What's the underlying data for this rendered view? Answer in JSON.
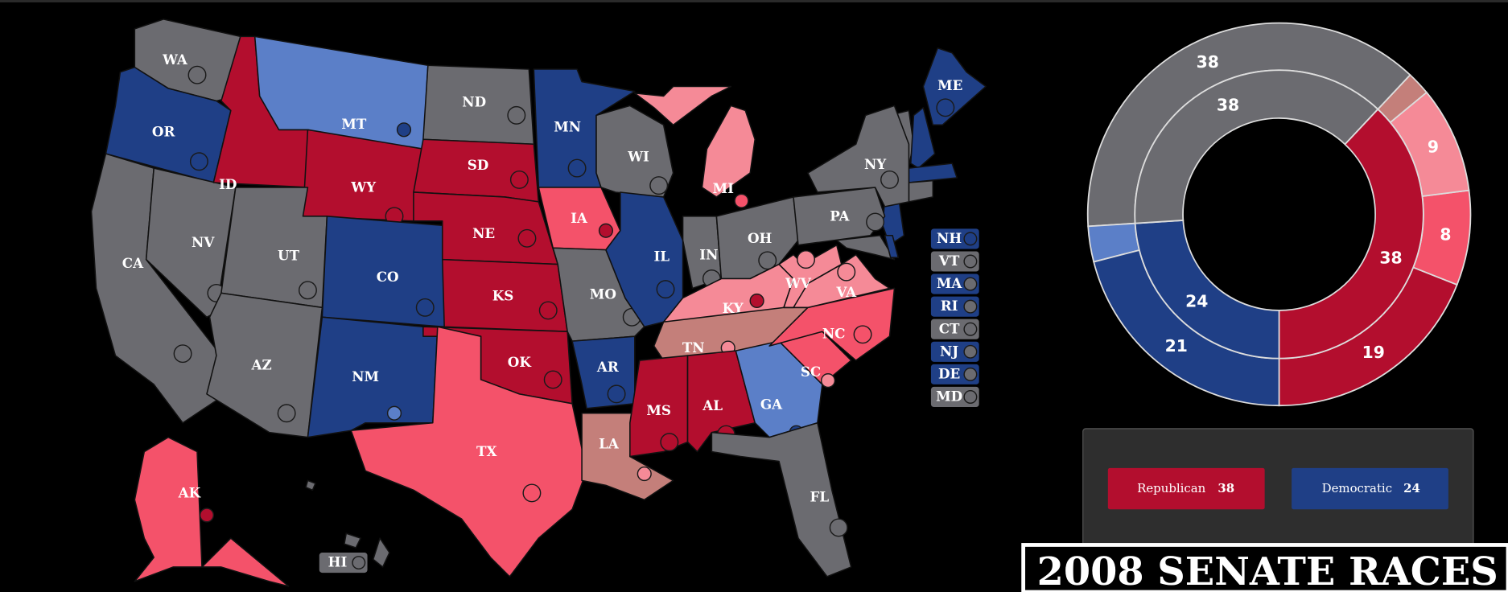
{
  "colors": {
    "safe_r": "#b30e2e",
    "likely_r": "#f4526a",
    "lean_r": "#f58a97",
    "tossup": "#c47f7a",
    "safe_d": "#1f3f86",
    "likely_d": "#5b7fc8",
    "none": "#6b6b70"
  },
  "states": [
    {
      "abbr": "WA",
      "rating": "none",
      "marker": "none"
    },
    {
      "abbr": "OR",
      "rating": "safe_d",
      "marker": "safe_d"
    },
    {
      "abbr": "CA",
      "rating": "none",
      "marker": "none"
    },
    {
      "abbr": "NV",
      "rating": "none",
      "marker": "none"
    },
    {
      "abbr": "ID",
      "rating": "safe_r",
      "marker": "safe_r"
    },
    {
      "abbr": "MT",
      "rating": "likely_d",
      "marker": "safe_d"
    },
    {
      "abbr": "WY",
      "rating": "safe_r",
      "marker": "safe_r"
    },
    {
      "abbr": "UT",
      "rating": "none",
      "marker": "none"
    },
    {
      "abbr": "CO",
      "rating": "safe_d",
      "marker": "safe_d"
    },
    {
      "abbr": "AZ",
      "rating": "none",
      "marker": "none"
    },
    {
      "abbr": "NM",
      "rating": "safe_d",
      "marker": "likely_d"
    },
    {
      "abbr": "ND",
      "rating": "none",
      "marker": "none"
    },
    {
      "abbr": "SD",
      "rating": "safe_r",
      "marker": "safe_r"
    },
    {
      "abbr": "NE",
      "rating": "safe_r",
      "marker": "safe_r"
    },
    {
      "abbr": "KS",
      "rating": "safe_r",
      "marker": "safe_r"
    },
    {
      "abbr": "OK",
      "rating": "safe_r",
      "marker": "safe_r"
    },
    {
      "abbr": "TX",
      "rating": "likely_r",
      "marker": "likely_r"
    },
    {
      "abbr": "MN",
      "rating": "safe_d",
      "marker": "safe_d"
    },
    {
      "abbr": "IA",
      "rating": "likely_r",
      "marker": "safe_r"
    },
    {
      "abbr": "MO",
      "rating": "none",
      "marker": "none"
    },
    {
      "abbr": "AR",
      "rating": "safe_d",
      "marker": "safe_d"
    },
    {
      "abbr": "LA",
      "rating": "tossup",
      "marker": "lean_r"
    },
    {
      "abbr": "WI",
      "rating": "none",
      "marker": "none"
    },
    {
      "abbr": "IL",
      "rating": "safe_d",
      "marker": "safe_d"
    },
    {
      "abbr": "MI",
      "rating": "lean_r",
      "marker": "likely_r"
    },
    {
      "abbr": "IN",
      "rating": "none",
      "marker": "none"
    },
    {
      "abbr": "OH",
      "rating": "none",
      "marker": "none"
    },
    {
      "abbr": "KY",
      "rating": "lean_r",
      "marker": "safe_r"
    },
    {
      "abbr": "TN",
      "rating": "tossup",
      "marker": "lean_r"
    },
    {
      "abbr": "MS",
      "rating": "safe_r",
      "marker": "safe_r"
    },
    {
      "abbr": "AL",
      "rating": "safe_r",
      "marker": "safe_r"
    },
    {
      "abbr": "GA",
      "rating": "likely_d",
      "marker": "safe_d"
    },
    {
      "abbr": "FL",
      "rating": "none",
      "marker": "none"
    },
    {
      "abbr": "SC",
      "rating": "likely_r",
      "marker": "lean_r"
    },
    {
      "abbr": "NC",
      "rating": "likely_r",
      "marker": "likely_r"
    },
    {
      "abbr": "VA",
      "rating": "lean_r",
      "marker": "lean_r"
    },
    {
      "abbr": "WV",
      "rating": "lean_r",
      "marker": "lean_r"
    },
    {
      "abbr": "PA",
      "rating": "none",
      "marker": "none"
    },
    {
      "abbr": "NY",
      "rating": "none",
      "marker": "none"
    },
    {
      "abbr": "ME",
      "rating": "safe_d",
      "marker": "safe_d"
    },
    {
      "abbr": "AK",
      "rating": "likely_r",
      "marker": "safe_r"
    }
  ],
  "small_states": [
    {
      "abbr": "NH",
      "rating": "safe_d",
      "marker": "safe_d"
    },
    {
      "abbr": "VT",
      "rating": "none",
      "marker": "none"
    },
    {
      "abbr": "MA",
      "rating": "safe_d",
      "marker": "none"
    },
    {
      "abbr": "RI",
      "rating": "safe_d",
      "marker": "none"
    },
    {
      "abbr": "CT",
      "rating": "none",
      "marker": "none"
    },
    {
      "abbr": "NJ",
      "rating": "safe_d",
      "marker": "none"
    },
    {
      "abbr": "DE",
      "rating": "safe_d",
      "marker": "none"
    },
    {
      "abbr": "MD",
      "rating": "none",
      "marker": "none"
    },
    {
      "abbr": "HI",
      "rating": "none",
      "marker": "none"
    }
  ],
  "chart_data": {
    "type": "pie",
    "inner_ring": [
      {
        "label": "38",
        "value": 38,
        "color": "safe_r"
      },
      {
        "label": "24",
        "value": 24,
        "color": "safe_d"
      },
      {
        "label": "38",
        "value": 38,
        "color": "none"
      }
    ],
    "outer_ring": [
      {
        "label": "19",
        "value": 19,
        "color": "safe_r"
      },
      {
        "label": "8",
        "value": 8,
        "color": "likely_r"
      },
      {
        "label": "9",
        "value": 9,
        "color": "lean_r"
      },
      {
        "label": "",
        "value": 2,
        "color": "tossup"
      },
      {
        "label": "38",
        "value": 38,
        "color": "none"
      },
      {
        "label": "",
        "value": 3,
        "color": "likely_d"
      },
      {
        "label": "21",
        "value": 21,
        "color": "safe_d"
      }
    ]
  },
  "legend": {
    "republican": {
      "label": "Republican",
      "count": "38"
    },
    "democratic": {
      "label": "Democratic",
      "count": "24"
    }
  },
  "title": "2008 SENATE RACES"
}
